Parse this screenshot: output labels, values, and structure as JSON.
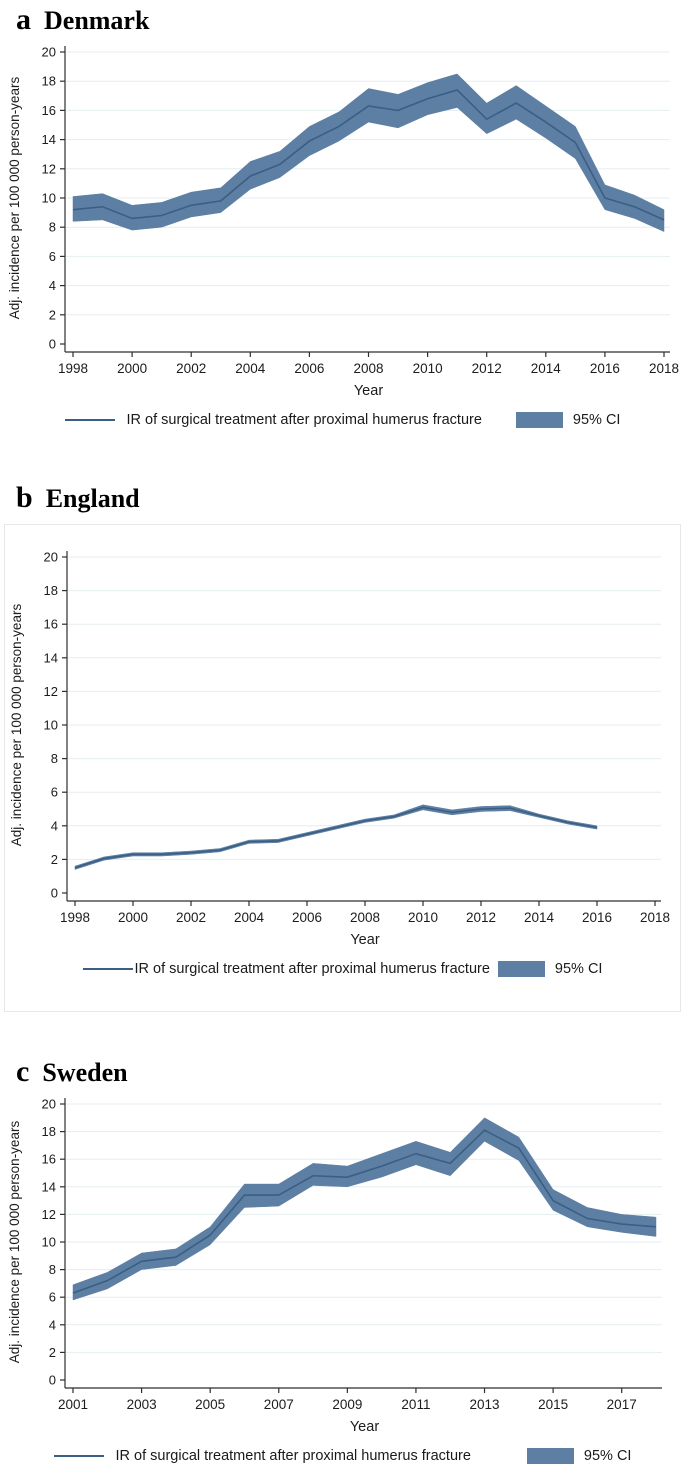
{
  "colors": {
    "line": "#3a5e84",
    "band": "#5d7fa3",
    "grid": "#e6eef0",
    "axis": "#2e2e2e",
    "panel_border": "#e4e8e9"
  },
  "chart_data": [
    {
      "type": "line",
      "panel_letter": "a",
      "title": "Denmark",
      "xlabel": "Year",
      "ylabel": "Adj. incidence per 100 000 person-years",
      "legend": {
        "line_label": "IR of surgical treatment after proximal humerus fracture",
        "ci_label": "95% CI"
      },
      "xlim": [
        1998,
        2018
      ],
      "ylim": [
        0,
        20
      ],
      "xtick_step": 2,
      "ytick_step": 2,
      "grid": true,
      "legend_position": "bottom",
      "x": [
        1998,
        1999,
        2000,
        2001,
        2002,
        2003,
        2004,
        2005,
        2006,
        2007,
        2008,
        2009,
        2010,
        2011,
        2012,
        2013,
        2014,
        2015,
        2016,
        2017,
        2018
      ],
      "series": [
        {
          "name": "IR of surgical treatment after proximal humerus fracture",
          "values": [
            9.2,
            9.4,
            8.6,
            8.8,
            9.5,
            9.8,
            11.5,
            12.3,
            13.9,
            14.9,
            16.3,
            16.0,
            16.8,
            17.4,
            15.4,
            16.5,
            15.2,
            13.8,
            10.0,
            9.4,
            8.5
          ]
        },
        {
          "name": "95% CI lower",
          "values": [
            8.4,
            8.5,
            7.8,
            8.0,
            8.7,
            9.0,
            10.6,
            11.4,
            12.9,
            13.9,
            15.2,
            14.8,
            15.7,
            16.2,
            14.4,
            15.4,
            14.1,
            12.7,
            9.2,
            8.6,
            7.7
          ]
        },
        {
          "name": "95% CI upper",
          "values": [
            10.1,
            10.3,
            9.5,
            9.7,
            10.4,
            10.7,
            12.5,
            13.2,
            14.9,
            15.9,
            17.5,
            17.1,
            17.9,
            18.5,
            16.5,
            17.7,
            16.3,
            14.9,
            10.9,
            10.2,
            9.2
          ]
        }
      ]
    },
    {
      "type": "line",
      "panel_letter": "b",
      "title": "England",
      "xlabel": "Year",
      "ylabel": "Adj. incidence per 100 000 person-years",
      "legend": {
        "line_label": "IR of surgical treatment after proximal humerus fracture",
        "ci_label": "95% CI"
      },
      "xlim": [
        1998,
        2018
      ],
      "ylim": [
        0,
        20
      ],
      "xtick_step": 2,
      "ytick_step": 2,
      "grid": true,
      "legend_position": "bottom",
      "x": [
        1998,
        1999,
        2000,
        2001,
        2002,
        2003,
        2004,
        2005,
        2006,
        2007,
        2008,
        2009,
        2010,
        2011,
        2012,
        2013,
        2014,
        2015,
        2016
      ],
      "series": [
        {
          "name": "IR of surgical treatment after proximal humerus fracture",
          "values": [
            1.5,
            2.05,
            2.3,
            2.3,
            2.4,
            2.55,
            3.05,
            3.1,
            3.5,
            3.9,
            4.3,
            4.55,
            5.1,
            4.8,
            5.0,
            5.05,
            4.6,
            4.2,
            3.9
          ]
        },
        {
          "name": "95% CI lower",
          "values": [
            1.4,
            1.95,
            2.2,
            2.2,
            2.3,
            2.45,
            2.95,
            3.0,
            3.4,
            3.8,
            4.2,
            4.45,
            4.95,
            4.65,
            4.85,
            4.9,
            4.5,
            4.1,
            3.8
          ]
        },
        {
          "name": "95% CI upper",
          "values": [
            1.6,
            2.15,
            2.4,
            2.4,
            2.5,
            2.65,
            3.15,
            3.2,
            3.6,
            4.0,
            4.4,
            4.65,
            5.25,
            4.95,
            5.15,
            5.2,
            4.7,
            4.3,
            4.0
          ]
        }
      ]
    },
    {
      "type": "line",
      "panel_letter": "c",
      "title": "Sweden",
      "xlabel": "Year",
      "ylabel": "Adj. incidence per 100 000 person-years",
      "legend": {
        "line_label": "IR of surgical treatment after proximal humerus fracture",
        "ci_label": "95% CI"
      },
      "xlim": [
        2001,
        2018
      ],
      "ylim": [
        0,
        20
      ],
      "xtick_step": 2,
      "ytick_step": 2,
      "grid": true,
      "legend_position": "bottom",
      "x": [
        2001,
        2002,
        2003,
        2004,
        2005,
        2006,
        2007,
        2008,
        2009,
        2010,
        2011,
        2012,
        2013,
        2014,
        2015,
        2016,
        2017,
        2018
      ],
      "series": [
        {
          "name": "IR of surgical treatment after proximal humerus fracture",
          "values": [
            6.3,
            7.2,
            8.6,
            8.9,
            10.5,
            13.4,
            13.4,
            14.8,
            14.7,
            15.5,
            16.4,
            15.7,
            18.1,
            16.8,
            13.0,
            11.7,
            11.3,
            11.1
          ]
        },
        {
          "name": "95% CI lower",
          "values": [
            5.8,
            6.6,
            8.0,
            8.3,
            9.8,
            12.5,
            12.6,
            14.1,
            14.0,
            14.7,
            15.6,
            14.8,
            17.3,
            15.9,
            12.3,
            11.1,
            10.7,
            10.4
          ]
        },
        {
          "name": "95% CI upper",
          "values": [
            6.9,
            7.8,
            9.2,
            9.5,
            11.1,
            14.2,
            14.2,
            15.7,
            15.5,
            16.4,
            17.3,
            16.5,
            19.0,
            17.6,
            13.8,
            12.5,
            12.0,
            11.8
          ]
        }
      ]
    }
  ]
}
